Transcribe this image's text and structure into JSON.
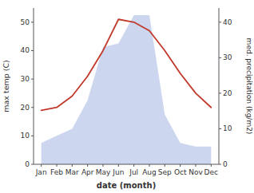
{
  "chart_data": {
    "type": "line",
    "categories": [
      "Jan",
      "Feb",
      "Mar",
      "Apr",
      "May",
      "Jun",
      "Jul",
      "Aug",
      "Sep",
      "Oct",
      "Nov",
      "Dec"
    ],
    "x_label": "date (month)",
    "y_label": "max temp (C)",
    "y2_label": "med. precipitation (kg/m2)",
    "ylim": [
      0,
      55
    ],
    "yticks": [
      0,
      10,
      20,
      30,
      40,
      50
    ],
    "y2lim": [
      0,
      44
    ],
    "y2ticks": [
      0,
      10,
      20,
      30,
      40
    ],
    "series": [
      {
        "type": "area",
        "axis": "y2",
        "color": "#b8c4e8",
        "values": [
          6,
          8,
          10,
          18,
          33,
          34,
          42,
          42,
          14,
          6,
          5,
          5
        ]
      },
      {
        "type": "line",
        "color": "#c0392b",
        "values": [
          19,
          20,
          24,
          31,
          40,
          51,
          50,
          47,
          40,
          32,
          25,
          20
        ]
      }
    ]
  }
}
